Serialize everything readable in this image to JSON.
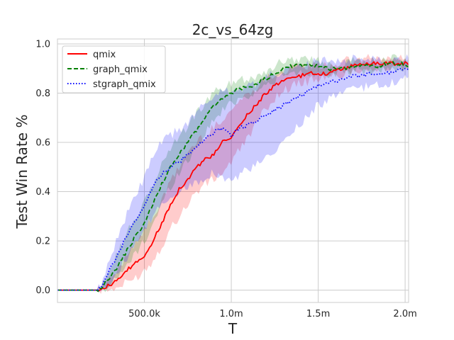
{
  "chart_data": {
    "type": "line",
    "title": "2c_vs_64zg",
    "xlabel": "T",
    "ylabel": "Test Win Rate %",
    "xlim": [
      0,
      2020000
    ],
    "ylim": [
      -0.05,
      1.02
    ],
    "x_ticks": [
      500000,
      1000000,
      1500000,
      2000000
    ],
    "x_tick_labels": [
      "500.0k",
      "1.0m",
      "1.5m",
      "2.0m"
    ],
    "y_ticks": [
      0.0,
      0.2,
      0.4,
      0.6,
      0.8,
      1.0
    ],
    "y_tick_labels": [
      "0.0",
      "0.2",
      "0.4",
      "0.6",
      "0.8",
      "1.0"
    ],
    "grid": true,
    "legend_position": "top-left",
    "series": [
      {
        "name": "qmix",
        "color": "#ff0000",
        "style": "solid",
        "x": [
          0,
          100000,
          200000,
          225000,
          250000,
          300000,
          350000,
          400000,
          450000,
          500000,
          550000,
          600000,
          650000,
          700000,
          750000,
          800000,
          850000,
          900000,
          950000,
          1000000,
          1050000,
          1100000,
          1150000,
          1200000,
          1250000,
          1300000,
          1350000,
          1400000,
          1450000,
          1500000,
          1550000,
          1600000,
          1650000,
          1700000,
          1750000,
          1800000,
          1850000,
          1900000,
          1950000,
          2000000,
          2020000
        ],
        "y": [
          0.0,
          0.0,
          0.0,
          0.0,
          0.005,
          0.02,
          0.04,
          0.08,
          0.11,
          0.14,
          0.2,
          0.27,
          0.35,
          0.41,
          0.45,
          0.5,
          0.53,
          0.55,
          0.6,
          0.62,
          0.67,
          0.72,
          0.76,
          0.8,
          0.83,
          0.85,
          0.86,
          0.87,
          0.88,
          0.88,
          0.88,
          0.89,
          0.9,
          0.91,
          0.92,
          0.92,
          0.92,
          0.92,
          0.92,
          0.92,
          0.92
        ],
        "band_low": [
          0.0,
          0.0,
          0.0,
          0.0,
          0.0,
          0.0,
          0.01,
          0.03,
          0.05,
          0.08,
          0.12,
          0.18,
          0.25,
          0.3,
          0.35,
          0.4,
          0.43,
          0.45,
          0.48,
          0.52,
          0.57,
          0.63,
          0.68,
          0.74,
          0.78,
          0.81,
          0.83,
          0.84,
          0.85,
          0.86,
          0.86,
          0.87,
          0.88,
          0.89,
          0.9,
          0.9,
          0.9,
          0.9,
          0.9,
          0.9,
          0.9
        ],
        "band_high": [
          0.0,
          0.0,
          0.0,
          0.0,
          0.01,
          0.04,
          0.08,
          0.15,
          0.2,
          0.24,
          0.3,
          0.36,
          0.44,
          0.5,
          0.56,
          0.6,
          0.63,
          0.66,
          0.7,
          0.73,
          0.77,
          0.8,
          0.83,
          0.86,
          0.88,
          0.89,
          0.9,
          0.91,
          0.91,
          0.91,
          0.91,
          0.92,
          0.93,
          0.93,
          0.94,
          0.94,
          0.94,
          0.94,
          0.94,
          0.94,
          0.94
        ]
      },
      {
        "name": "graph_qmix",
        "color": "#008000",
        "style": "dashed",
        "x": [
          0,
          100000,
          200000,
          225000,
          250000,
          300000,
          350000,
          400000,
          450000,
          500000,
          550000,
          600000,
          650000,
          700000,
          750000,
          800000,
          850000,
          900000,
          950000,
          1000000,
          1050000,
          1100000,
          1150000,
          1200000,
          1250000,
          1300000,
          1350000,
          1400000,
          1450000,
          1500000,
          1550000,
          1600000,
          1650000,
          1700000,
          1750000,
          1800000,
          1850000,
          1900000,
          1950000,
          2000000,
          2020000
        ],
        "y": [
          0.0,
          0.0,
          0.0,
          0.0,
          0.01,
          0.05,
          0.1,
          0.16,
          0.22,
          0.27,
          0.35,
          0.43,
          0.5,
          0.55,
          0.6,
          0.65,
          0.7,
          0.75,
          0.78,
          0.8,
          0.82,
          0.82,
          0.84,
          0.86,
          0.88,
          0.9,
          0.91,
          0.91,
          0.91,
          0.91,
          0.9,
          0.9,
          0.9,
          0.91,
          0.91,
          0.91,
          0.91,
          0.92,
          0.92,
          0.92,
          0.91
        ],
        "band_low": [
          0.0,
          0.0,
          0.0,
          0.0,
          0.0,
          0.02,
          0.05,
          0.1,
          0.15,
          0.2,
          0.27,
          0.35,
          0.42,
          0.48,
          0.53,
          0.58,
          0.64,
          0.69,
          0.73,
          0.76,
          0.78,
          0.79,
          0.81,
          0.83,
          0.85,
          0.87,
          0.88,
          0.88,
          0.88,
          0.88,
          0.88,
          0.88,
          0.88,
          0.89,
          0.89,
          0.89,
          0.89,
          0.9,
          0.9,
          0.9,
          0.89
        ],
        "band_high": [
          0.0,
          0.0,
          0.0,
          0.0,
          0.02,
          0.09,
          0.16,
          0.23,
          0.3,
          0.35,
          0.43,
          0.51,
          0.58,
          0.62,
          0.67,
          0.72,
          0.76,
          0.8,
          0.82,
          0.84,
          0.86,
          0.86,
          0.87,
          0.89,
          0.91,
          0.93,
          0.94,
          0.94,
          0.94,
          0.93,
          0.92,
          0.92,
          0.92,
          0.93,
          0.93,
          0.93,
          0.93,
          0.94,
          0.94,
          0.94,
          0.93
        ]
      },
      {
        "name": "stgraph_qmix",
        "color": "#0000ff",
        "style": "dotted",
        "x": [
          0,
          100000,
          200000,
          225000,
          250000,
          300000,
          350000,
          400000,
          450000,
          500000,
          550000,
          600000,
          650000,
          700000,
          750000,
          800000,
          850000,
          900000,
          950000,
          1000000,
          1050000,
          1100000,
          1150000,
          1200000,
          1250000,
          1300000,
          1350000,
          1400000,
          1450000,
          1500000,
          1550000,
          1600000,
          1650000,
          1700000,
          1750000,
          1800000,
          1850000,
          1900000,
          1950000,
          2000000,
          2020000
        ],
        "y": [
          0.0,
          0.0,
          0.0,
          0.0,
          0.01,
          0.08,
          0.15,
          0.22,
          0.28,
          0.35,
          0.42,
          0.47,
          0.5,
          0.52,
          0.55,
          0.58,
          0.61,
          0.64,
          0.66,
          0.63,
          0.66,
          0.67,
          0.69,
          0.71,
          0.73,
          0.75,
          0.77,
          0.79,
          0.81,
          0.83,
          0.84,
          0.85,
          0.86,
          0.87,
          0.87,
          0.88,
          0.88,
          0.88,
          0.89,
          0.9,
          0.89
        ],
        "band_low": [
          0.0,
          0.0,
          0.0,
          0.0,
          0.0,
          0.03,
          0.08,
          0.13,
          0.18,
          0.24,
          0.3,
          0.35,
          0.38,
          0.4,
          0.42,
          0.44,
          0.46,
          0.48,
          0.46,
          0.44,
          0.47,
          0.49,
          0.51,
          0.53,
          0.56,
          0.6,
          0.64,
          0.68,
          0.72,
          0.75,
          0.77,
          0.79,
          0.8,
          0.82,
          0.82,
          0.83,
          0.83,
          0.84,
          0.85,
          0.86,
          0.85
        ],
        "band_high": [
          0.0,
          0.0,
          0.0,
          0.0,
          0.02,
          0.13,
          0.22,
          0.31,
          0.38,
          0.46,
          0.54,
          0.6,
          0.63,
          0.65,
          0.68,
          0.72,
          0.76,
          0.79,
          0.82,
          0.8,
          0.82,
          0.83,
          0.84,
          0.86,
          0.88,
          0.89,
          0.9,
          0.91,
          0.92,
          0.93,
          0.93,
          0.93,
          0.93,
          0.94,
          0.94,
          0.94,
          0.94,
          0.94,
          0.94,
          0.94,
          0.94
        ]
      }
    ]
  }
}
